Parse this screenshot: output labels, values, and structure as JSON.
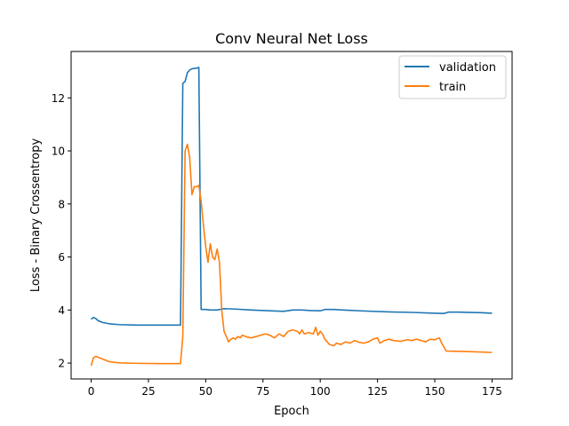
{
  "chart_data": {
    "type": "line",
    "title": "Conv Neural Net Loss",
    "xlabel": "Epoch",
    "ylabel": "Loss - Binary Crossentropy",
    "xlim": [
      -8.75,
      183.75
    ],
    "ylim": [
      1.4,
      13.75
    ],
    "xticks": [
      0,
      25,
      50,
      75,
      100,
      125,
      150,
      175
    ],
    "yticks": [
      2,
      4,
      6,
      8,
      10,
      12
    ],
    "grid": false,
    "legend": "top-right",
    "series": [
      {
        "name": "validation",
        "color": "#1f77b4",
        "points": [
          [
            0,
            3.65
          ],
          [
            1,
            3.72
          ],
          [
            2,
            3.68
          ],
          [
            3,
            3.6
          ],
          [
            5,
            3.53
          ],
          [
            8,
            3.48
          ],
          [
            12,
            3.45
          ],
          [
            20,
            3.43
          ],
          [
            30,
            3.43
          ],
          [
            39,
            3.43
          ],
          [
            40,
            12.55
          ],
          [
            41,
            12.62
          ],
          [
            42,
            12.95
          ],
          [
            43,
            13.05
          ],
          [
            44,
            13.1
          ],
          [
            46,
            13.12
          ],
          [
            47,
            13.15
          ],
          [
            48,
            4.02
          ],
          [
            50,
            4.02
          ],
          [
            52,
            4.0
          ],
          [
            55,
            4.0
          ],
          [
            58,
            4.05
          ],
          [
            62,
            4.04
          ],
          [
            70,
            4.0
          ],
          [
            78,
            3.97
          ],
          [
            84,
            3.95
          ],
          [
            88,
            4.0
          ],
          [
            92,
            4.0
          ],
          [
            96,
            3.98
          ],
          [
            100,
            3.97
          ],
          [
            102,
            4.02
          ],
          [
            106,
            4.02
          ],
          [
            112,
            3.99
          ],
          [
            120,
            3.96
          ],
          [
            130,
            3.93
          ],
          [
            140,
            3.91
          ],
          [
            150,
            3.88
          ],
          [
            154,
            3.87
          ],
          [
            156,
            3.92
          ],
          [
            160,
            3.92
          ],
          [
            170,
            3.9
          ],
          [
            175,
            3.88
          ]
        ]
      },
      {
        "name": "train",
        "color": "#ff7f0e",
        "points": [
          [
            0,
            1.9
          ],
          [
            1,
            2.2
          ],
          [
            2,
            2.25
          ],
          [
            3,
            2.22
          ],
          [
            5,
            2.15
          ],
          [
            8,
            2.05
          ],
          [
            12,
            2.01
          ],
          [
            20,
            1.99
          ],
          [
            30,
            1.98
          ],
          [
            39,
            1.98
          ],
          [
            40,
            3.0
          ],
          [
            41,
            10.0
          ],
          [
            42,
            10.25
          ],
          [
            43,
            9.75
          ],
          [
            44,
            8.35
          ],
          [
            45,
            8.65
          ],
          [
            46,
            8.65
          ],
          [
            47,
            8.7
          ],
          [
            48,
            8.1
          ],
          [
            49,
            7.2
          ],
          [
            50,
            6.4
          ],
          [
            51,
            5.8
          ],
          [
            52,
            6.5
          ],
          [
            53,
            6.0
          ],
          [
            54,
            5.9
          ],
          [
            55,
            6.3
          ],
          [
            56,
            5.8
          ],
          [
            57,
            4.0
          ],
          [
            58,
            3.2
          ],
          [
            59,
            3.0
          ],
          [
            60,
            2.8
          ],
          [
            61,
            2.9
          ],
          [
            62,
            2.95
          ],
          [
            63,
            2.9
          ],
          [
            64,
            3.0
          ],
          [
            65,
            2.95
          ],
          [
            66,
            3.05
          ],
          [
            68,
            2.98
          ],
          [
            70,
            2.95
          ],
          [
            72,
            3.0
          ],
          [
            74,
            3.05
          ],
          [
            76,
            3.1
          ],
          [
            78,
            3.05
          ],
          [
            80,
            2.95
          ],
          [
            82,
            3.1
          ],
          [
            84,
            3.0
          ],
          [
            86,
            3.2
          ],
          [
            88,
            3.25
          ],
          [
            90,
            3.2
          ],
          [
            91,
            3.1
          ],
          [
            92,
            3.25
          ],
          [
            93,
            3.1
          ],
          [
            95,
            3.15
          ],
          [
            97,
            3.1
          ],
          [
            98,
            3.35
          ],
          [
            99,
            3.05
          ],
          [
            100,
            3.2
          ],
          [
            101,
            3.1
          ],
          [
            102,
            2.9
          ],
          [
            104,
            2.7
          ],
          [
            106,
            2.65
          ],
          [
            107,
            2.75
          ],
          [
            109,
            2.7
          ],
          [
            111,
            2.8
          ],
          [
            113,
            2.75
          ],
          [
            115,
            2.85
          ],
          [
            117,
            2.78
          ],
          [
            119,
            2.75
          ],
          [
            121,
            2.8
          ],
          [
            123,
            2.9
          ],
          [
            125,
            2.95
          ],
          [
            126,
            2.75
          ],
          [
            128,
            2.85
          ],
          [
            130,
            2.9
          ],
          [
            132,
            2.85
          ],
          [
            135,
            2.82
          ],
          [
            138,
            2.88
          ],
          [
            140,
            2.85
          ],
          [
            142,
            2.9
          ],
          [
            144,
            2.85
          ],
          [
            146,
            2.8
          ],
          [
            148,
            2.9
          ],
          [
            150,
            2.88
          ],
          [
            152,
            2.95
          ],
          [
            153,
            2.75
          ],
          [
            154,
            2.6
          ],
          [
            155,
            2.45
          ],
          [
            157,
            2.45
          ],
          [
            165,
            2.43
          ],
          [
            175,
            2.4
          ]
        ]
      }
    ]
  }
}
